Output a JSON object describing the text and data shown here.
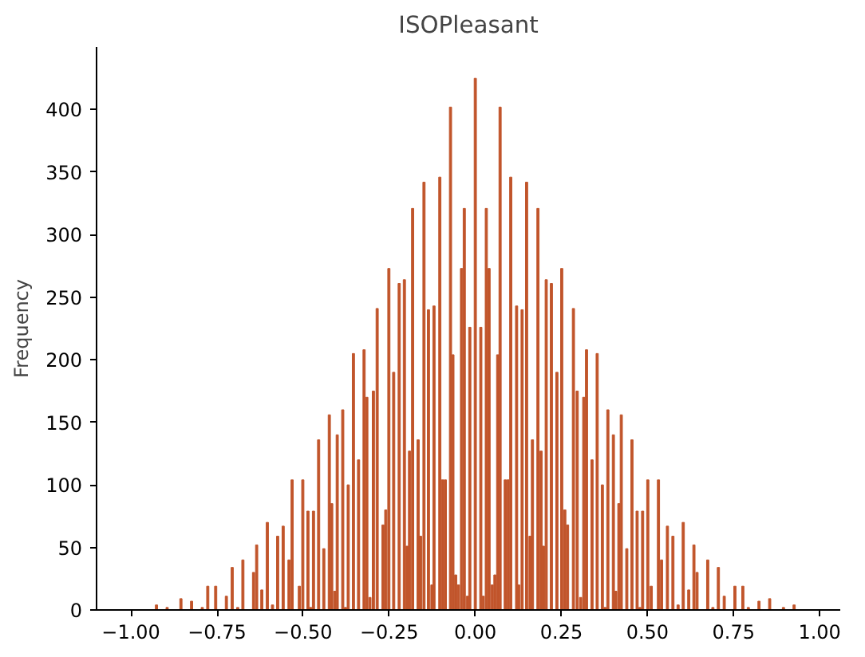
{
  "chart_data": {
    "type": "bar",
    "title": "ISOPleasant",
    "ylabel": "Frequency",
    "color": "#c1552b",
    "x": [
      -0.926,
      -0.895,
      -0.855,
      -0.824,
      -0.793,
      -0.777,
      -0.754,
      -0.723,
      -0.706,
      -0.69,
      -0.675,
      -0.644,
      -0.635,
      -0.62,
      -0.604,
      -0.589,
      -0.574,
      -0.558,
      -0.541,
      -0.532,
      -0.511,
      -0.501,
      -0.486,
      -0.478,
      -0.47,
      -0.455,
      -0.44,
      -0.424,
      -0.417,
      -0.408,
      -0.401,
      -0.385,
      -0.377,
      -0.369,
      -0.354,
      -0.339,
      -0.323,
      -0.315,
      -0.306,
      -0.296,
      -0.285,
      -0.268,
      -0.26,
      -0.251,
      -0.237,
      -0.221,
      -0.206,
      -0.198,
      -0.191,
      -0.182,
      -0.166,
      -0.159,
      -0.149,
      -0.136,
      -0.126,
      -0.12,
      -0.103,
      -0.095,
      -0.087,
      -0.072,
      -0.065,
      -0.057,
      -0.049,
      -0.04,
      -0.032,
      -0.023,
      -0.016,
      0,
      0.016,
      0.023,
      0.032,
      0.04,
      0.049,
      0.057,
      0.065,
      0.072,
      0.087,
      0.095,
      0.103,
      0.12,
      0.126,
      0.136,
      0.149,
      0.159,
      0.166,
      0.182,
      0.191,
      0.198,
      0.206,
      0.221,
      0.237,
      0.251,
      0.26,
      0.268,
      0.285,
      0.296,
      0.306,
      0.315,
      0.323,
      0.339,
      0.354,
      0.369,
      0.377,
      0.385,
      0.401,
      0.408,
      0.417,
      0.424,
      0.44,
      0.455,
      0.47,
      0.478,
      0.486,
      0.501,
      0.511,
      0.532,
      0.541,
      0.558,
      0.574,
      0.589,
      0.604,
      0.62,
      0.635,
      0.644,
      0.675,
      0.69,
      0.706,
      0.723,
      0.754,
      0.777,
      0.793,
      0.824,
      0.855,
      0.895,
      0.926
    ],
    "values": [
      4,
      2,
      9,
      7,
      2,
      19,
      19,
      11,
      34,
      2,
      40,
      30,
      52,
      16,
      70,
      4,
      59,
      67,
      40,
      104,
      19,
      104,
      79,
      2,
      79,
      136,
      49,
      156,
      85,
      15,
      140,
      160,
      2,
      100,
      205,
      120,
      208,
      170,
      10,
      175,
      241,
      68,
      80,
      273,
      190,
      261,
      264,
      51,
      127,
      321,
      136,
      59,
      342,
      240,
      20,
      243,
      346,
      104,
      104,
      402,
      204,
      28,
      20,
      273,
      321,
      11,
      226,
      425,
      226,
      11,
      321,
      273,
      20,
      28,
      204,
      402,
      104,
      104,
      346,
      243,
      20,
      240,
      342,
      59,
      136,
      321,
      127,
      51,
      264,
      261,
      190,
      273,
      80,
      68,
      241,
      175,
      10,
      170,
      208,
      120,
      205,
      100,
      2,
      160,
      140,
      15,
      85,
      156,
      49,
      136,
      79,
      2,
      79,
      104,
      19,
      104,
      40,
      67,
      59,
      4,
      70,
      16,
      52,
      30,
      40,
      2,
      34,
      11,
      19,
      19,
      2,
      7,
      9,
      2,
      4
    ],
    "xlim": [
      -1.1,
      1.06
    ],
    "ylim": [
      0,
      450
    ],
    "xticks": [
      {
        "value": -1,
        "label": "−1.00"
      },
      {
        "value": -0.75,
        "label": "−0.75"
      },
      {
        "value": -0.5,
        "label": "−0.50"
      },
      {
        "value": -0.25,
        "label": "−0.25"
      },
      {
        "value": 0,
        "label": "0.00"
      },
      {
        "value": 0.25,
        "label": "0.25"
      },
      {
        "value": 0.5,
        "label": "0.50"
      },
      {
        "value": 0.75,
        "label": "0.75"
      },
      {
        "value": 1,
        "label": "1.00"
      }
    ],
    "yticks": [
      0,
      50,
      100,
      150,
      200,
      250,
      300,
      350,
      400
    ],
    "grid": false
  }
}
